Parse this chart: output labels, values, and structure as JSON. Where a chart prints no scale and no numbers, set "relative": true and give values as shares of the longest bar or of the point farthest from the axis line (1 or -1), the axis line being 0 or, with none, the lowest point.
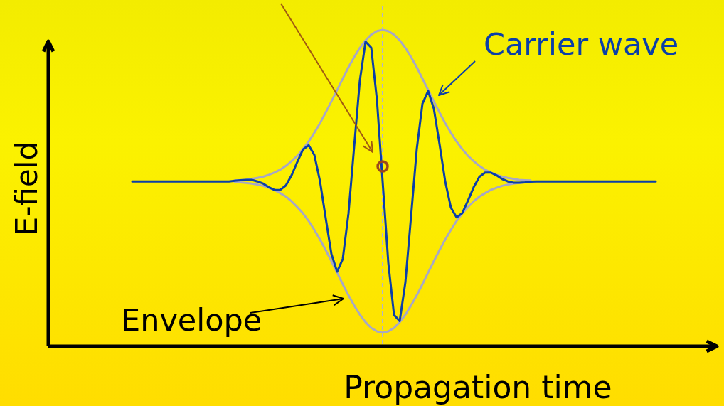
{
  "chart_data": [
    {
      "type": "line",
      "relative": true,
      "xlabel": "Propagation time",
      "ylabel": "E-field",
      "annotations": [
        "Carrier wave"
      ],
      "line_style": "solid",
      "categories": [
        null,
        null,
        null,
        null,
        null,
        null,
        null,
        null,
        null,
        null,
        null,
        null,
        null,
        null,
        null,
        null,
        null,
        null,
        null,
        null,
        null,
        null,
        null,
        null,
        null,
        null,
        null,
        null,
        null,
        null,
        null,
        null,
        null,
        null,
        null,
        null,
        null,
        null,
        null,
        null,
        null,
        null,
        null,
        null,
        null,
        null,
        null,
        null,
        null,
        null,
        null,
        null,
        null,
        null,
        null,
        null,
        null,
        null,
        null,
        null,
        null,
        null,
        null,
        null,
        null,
        null,
        null,
        null,
        null,
        null,
        null,
        null,
        null,
        null,
        null,
        null,
        null,
        null,
        null,
        null,
        null,
        null,
        null,
        null,
        null,
        null,
        null,
        null,
        null,
        null,
        null,
        null,
        null
      ],
      "series": [
        {
          "color": "#0b3fa8",
          "values": [
            0.541,
            0.541,
            0.541,
            0.541,
            0.541,
            0.541,
            0.541,
            0.541,
            0.541,
            0.541,
            0.541,
            0.541,
            0.541,
            0.541,
            0.541,
            0.541,
            0.541,
            0.541,
            0.543,
            0.545,
            0.546,
            0.546,
            0.541,
            0.534,
            0.522,
            0.513,
            0.513,
            0.528,
            0.561,
            0.605,
            0.646,
            0.66,
            0.628,
            0.541,
            0.42,
            0.303,
            0.245,
            0.287,
            0.436,
            0.656,
            0.873,
            1.0,
            0.98,
            0.809,
            0.541,
            0.274,
            0.103,
            0.083,
            0.21,
            0.427,
            0.647,
            0.796,
            0.838,
            0.78,
            0.664,
            0.541,
            0.455,
            0.423,
            0.437,
            0.478,
            0.522,
            0.556,
            0.57,
            0.57,
            0.561,
            0.549,
            0.541,
            0.537,
            0.537,
            0.538,
            0.54,
            0.541,
            0.541,
            0.541,
            0.541,
            0.541,
            0.541,
            0.541,
            0.541,
            0.541,
            0.541,
            0.541,
            0.541,
            0.541,
            0.541,
            0.541,
            0.541,
            0.541,
            0.541,
            0.541,
            0.541,
            0.541,
            0.541
          ]
        }
      ]
    },
    {
      "type": "line",
      "relative": true,
      "annotations": [
        "Envelope"
      ],
      "line_style": "solid",
      "categories": [
        null,
        null,
        null,
        null,
        null,
        null,
        null,
        null,
        null,
        null,
        null,
        null,
        null,
        null,
        null,
        null,
        null,
        null,
        null,
        null,
        null,
        null,
        null,
        null,
        null,
        null,
        null,
        null,
        null,
        null,
        null,
        null,
        null,
        null,
        null,
        null,
        null,
        null,
        null,
        null,
        null,
        null,
        null,
        null,
        null,
        null,
        null,
        null,
        null,
        null,
        null,
        null,
        null
      ],
      "series": [
        {
          "color": "#a8a8c4",
          "values": [
            0.524,
            0.525,
            0.526,
            0.529,
            0.532,
            0.536,
            0.542,
            0.549,
            0.558,
            0.57,
            0.585,
            0.602,
            0.623,
            0.647,
            0.675,
            0.705,
            0.739,
            0.774,
            0.81,
            0.846,
            0.882,
            0.914,
            0.943,
            0.967,
            0.985,
            0.996,
            1.0,
            0.996,
            0.985,
            0.967,
            0.943,
            0.914,
            0.882,
            0.846,
            0.81,
            0.774,
            0.739,
            0.705,
            0.675,
            0.647,
            0.623,
            0.602,
            0.585,
            0.57,
            0.558,
            0.549,
            0.542,
            0.536,
            0.532,
            0.529,
            0.526,
            0.525,
            0.524
          ]
        },
        {
          "color": "#a8a8c4",
          "values": [
            0.519,
            0.518,
            0.516,
            0.514,
            0.511,
            0.507,
            0.501,
            0.494,
            0.484,
            0.473,
            0.458,
            0.44,
            0.42,
            0.396,
            0.368,
            0.337,
            0.304,
            0.269,
            0.233,
            0.196,
            0.161,
            0.129,
            0.1,
            0.076,
            0.058,
            0.047,
            0.043,
            0.047,
            0.058,
            0.076,
            0.1,
            0.129,
            0.161,
            0.196,
            0.233,
            0.269,
            0.304,
            0.337,
            0.368,
            0.396,
            0.42,
            0.44,
            0.458,
            0.473,
            0.484,
            0.494,
            0.501,
            0.507,
            0.511,
            0.514,
            0.516,
            0.518,
            0.519
          ]
        }
      ]
    }
  ]
}
